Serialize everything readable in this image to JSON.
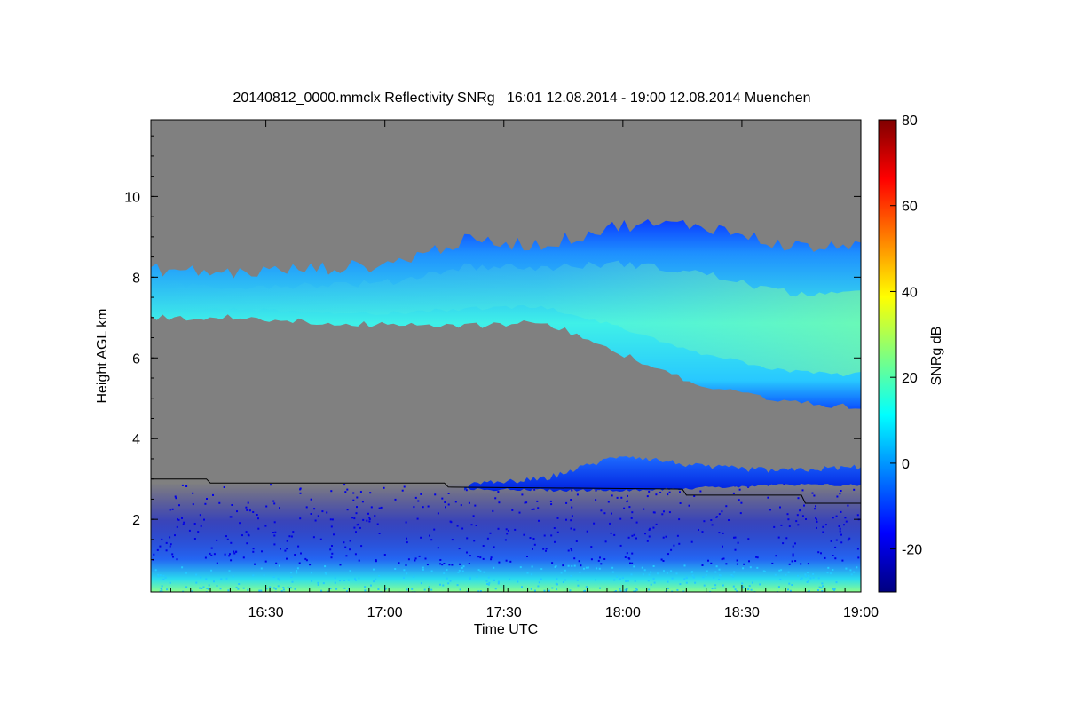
{
  "chart_data": {
    "type": "heatmap",
    "title": "20140812_0000.mmclx Reflectivity SNRg   16:01 12.08.2014 - 19:00 12.08.2014 Muenchen",
    "xlabel": "Time UTC",
    "ylabel": "Height AGL km",
    "xlim": [
      "16:01",
      "19:00"
    ],
    "ylim": [
      0.2,
      11.9
    ],
    "x_ticks": [
      "16:30",
      "17:00",
      "17:30",
      "18:00",
      "18:30",
      "19:00"
    ],
    "y_ticks": [
      "2",
      "4",
      "6",
      "8",
      "10"
    ],
    "background_color": "#808080",
    "colorbar": {
      "label": "SNRg dB",
      "range": [
        -30,
        80
      ],
      "ticks": [
        "-20",
        "0",
        "20",
        "40",
        "60",
        "80"
      ],
      "colors": [
        "#00007f",
        "#0000ff",
        "#007fff",
        "#00ffff",
        "#7fff7f",
        "#ffff00",
        "#ff7f00",
        "#ff0000",
        "#7f0000"
      ]
    },
    "layers": [
      {
        "name": "upper cloud",
        "snr_range_db": [
          -10,
          25
        ],
        "time": [
          "16:01",
          "16:20",
          "16:40",
          "17:00",
          "17:20",
          "17:40",
          "18:00",
          "18:20",
          "18:40",
          "18:55",
          "19:00"
        ],
        "base_km": [
          7.0,
          7.0,
          6.9,
          6.8,
          6.8,
          6.9,
          6.1,
          5.3,
          4.9,
          4.8,
          4.8
        ],
        "top_km": [
          8.2,
          8.1,
          8.2,
          8.3,
          8.9,
          8.8,
          9.3,
          9.3,
          8.8,
          8.7,
          9.0
        ]
      },
      {
        "name": "lower cloud",
        "snr_range_db": [
          -25,
          10
        ],
        "time": [
          "17:20",
          "17:40",
          "18:00",
          "18:20",
          "18:40",
          "19:00"
        ],
        "base_km": [
          2.75,
          2.72,
          2.72,
          2.78,
          2.85,
          2.85
        ],
        "top_km": [
          2.85,
          3.0,
          3.6,
          3.3,
          3.2,
          3.3
        ]
      },
      {
        "name": "near-surface clutter",
        "snr_range_db": [
          -25,
          20
        ],
        "base_km": 0.2,
        "top_km": 2.9
      }
    ],
    "boundary_line": {
      "time": [
        "16:01",
        "16:15",
        "16:16",
        "17:15",
        "17:16",
        "18:15",
        "18:16",
        "18:45",
        "18:46",
        "19:00"
      ],
      "height_km": [
        3.0,
        3.0,
        2.9,
        2.9,
        2.8,
        2.75,
        2.6,
        2.6,
        2.4,
        2.4
      ]
    }
  }
}
